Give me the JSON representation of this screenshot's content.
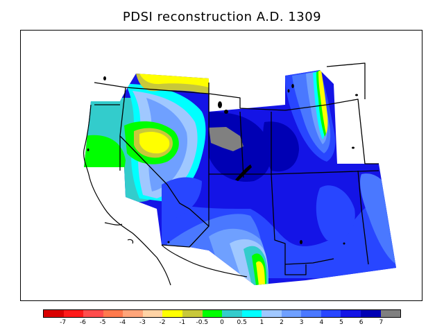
{
  "title": "PDSI reconstruction A.D. 1309",
  "legend": {
    "colors": [
      "#d90000",
      "#ff1a1a",
      "#ff4d4d",
      "#ff7a4d",
      "#ffa57a",
      "#ffd3a5",
      "#ffff00",
      "#c8c83a",
      "#00ff00",
      "#33cccc",
      "#00ffff",
      "#a0c8ff",
      "#6fa0ff",
      "#4a78ff",
      "#2846ff",
      "#1414e6",
      "#0000b4",
      "#808080"
    ],
    "labels": [
      "-7",
      "-6",
      "-5",
      "-4",
      "-3",
      "-2",
      "-1",
      "-0.5",
      "0",
      "0.5",
      "1",
      "2",
      "3",
      "4",
      "5",
      "6",
      "7"
    ]
  },
  "map": {
    "icons": {
      "missing": "gray-no-data-patch"
    }
  }
}
